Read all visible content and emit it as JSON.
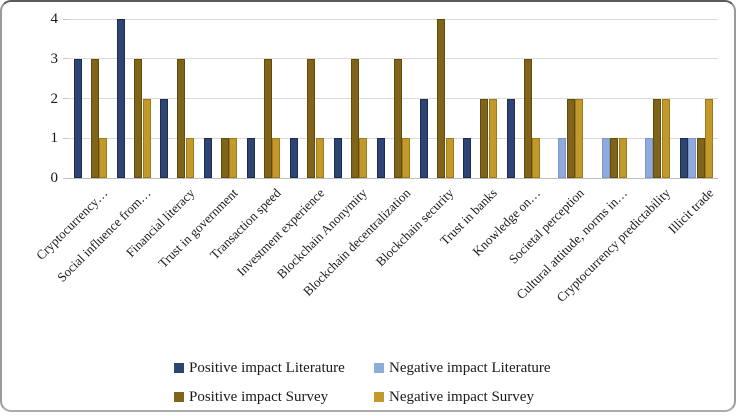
{
  "chart_data": {
    "type": "bar",
    "title": "",
    "xlabel": "",
    "ylabel": "",
    "ylim": [
      0,
      4
    ],
    "yticks": [
      "0",
      "1",
      "2",
      "3",
      "4"
    ],
    "grid": true,
    "legend_position": "bottom",
    "categories": [
      "Cryptocurrency…",
      "Social influence from…",
      "Financial literacy",
      "Trust in government",
      "Transaction speed",
      "Investment experience",
      "Blockchain Anonymity",
      "Blockchain decentralization",
      "Blockchain security",
      "Trust in banks",
      "Knowledge on…",
      "Societal perception",
      "Cultural attitude, norms in…",
      "Cryptocurrency predictability",
      "Illicit trade"
    ],
    "series": [
      {
        "name": "Positive impact Literature",
        "color": "#2E4474",
        "border_color": "#1E2C4F",
        "values": [
          3,
          4,
          2,
          1,
          1,
          1,
          1,
          1,
          2,
          1,
          2,
          0,
          0,
          0,
          1
        ]
      },
      {
        "name": "Negative impact Literature",
        "color": "#8FAADC",
        "border_color": "#7C97C5",
        "values": [
          0,
          0,
          0,
          0,
          0,
          0,
          0,
          0,
          0,
          0,
          0,
          1,
          1,
          1,
          1
        ]
      },
      {
        "name": "Positive impact Survey",
        "color": "#80641A",
        "border_color": "#5F4B0E",
        "values": [
          3,
          3,
          3,
          1,
          3,
          3,
          3,
          3,
          4,
          2,
          3,
          2,
          1,
          2,
          1
        ]
      },
      {
        "name": "Negative impact Survey",
        "color": "#C3992D",
        "border_color": "#9F7B18",
        "values": [
          1,
          2,
          1,
          1,
          1,
          1,
          1,
          1,
          1,
          2,
          1,
          2,
          1,
          2,
          2
        ]
      }
    ],
    "colors": {
      "gridline": "#DADADA",
      "axis_line": "#BDBDBD",
      "text": "#1a1a1a"
    }
  }
}
